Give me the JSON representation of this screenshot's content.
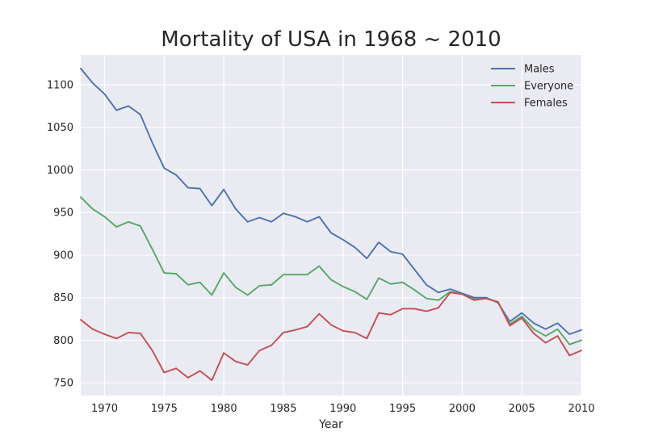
{
  "chart_data": {
    "type": "line",
    "title": "Mortality of USA in 1968 ~ 2010",
    "xlabel": "Year",
    "ylabel": "",
    "xlim": [
      1968,
      2010
    ],
    "ylim": [
      735,
      1135
    ],
    "x_ticks": [
      1970,
      1975,
      1980,
      1985,
      1990,
      1995,
      2000,
      2005,
      2010
    ],
    "y_ticks": [
      750,
      800,
      850,
      900,
      950,
      1000,
      1050,
      1100
    ],
    "grid": true,
    "legend_position": "top-right",
    "x": [
      1968,
      1969,
      1970,
      1971,
      1972,
      1973,
      1974,
      1975,
      1976,
      1977,
      1978,
      1979,
      1980,
      1981,
      1982,
      1983,
      1984,
      1985,
      1986,
      1987,
      1988,
      1989,
      1990,
      1991,
      1992,
      1993,
      1994,
      1995,
      1996,
      1997,
      1998,
      1999,
      2000,
      2001,
      2002,
      2003,
      2004,
      2005,
      2006,
      2007,
      2008,
      2009,
      2010
    ],
    "series": [
      {
        "name": "Males",
        "color": "#4c72b0",
        "values": [
          1119,
          1102,
          1089,
          1070,
          1075,
          1065,
          1032,
          1002,
          994,
          979,
          978,
          958,
          977,
          954,
          939,
          944,
          939,
          949,
          945,
          939,
          945,
          926,
          918,
          909,
          896,
          915,
          904,
          901,
          883,
          865,
          856,
          860,
          855,
          850,
          850,
          844,
          822,
          832,
          820,
          813,
          820,
          807,
          812
        ]
      },
      {
        "name": "Everyone",
        "color": "#55a868",
        "values": [
          968,
          954,
          945,
          933,
          939,
          934,
          907,
          879,
          878,
          865,
          868,
          853,
          879,
          862,
          853,
          864,
          865,
          877,
          877,
          877,
          887,
          871,
          863,
          857,
          848,
          873,
          866,
          868,
          859,
          849,
          847,
          857,
          854,
          848,
          849,
          845,
          819,
          828,
          813,
          805,
          813,
          795,
          800
        ]
      },
      {
        "name": "Females",
        "color": "#c44e52",
        "values": [
          824,
          813,
          807,
          802,
          809,
          808,
          788,
          762,
          767,
          756,
          764,
          753,
          785,
          775,
          771,
          788,
          794,
          809,
          812,
          816,
          831,
          818,
          811,
          809,
          802,
          832,
          830,
          837,
          837,
          834,
          838,
          856,
          854,
          847,
          849,
          845,
          817,
          826,
          808,
          797,
          805,
          782,
          788
        ]
      }
    ]
  }
}
